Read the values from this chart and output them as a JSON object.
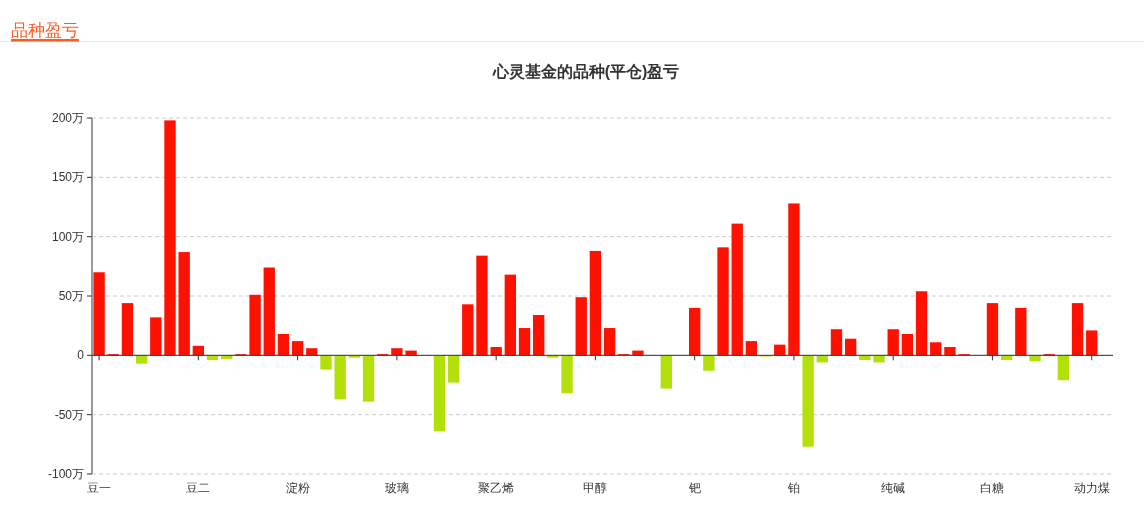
{
  "chart_data": {
    "type": "bar",
    "title": "心灵基金的品种(平仓)盈亏",
    "annotations": [
      "品种盈亏"
    ],
    "categories": [
      "豆一",
      null,
      null,
      null,
      null,
      null,
      null,
      "豆二",
      null,
      null,
      null,
      null,
      null,
      null,
      "淀粉",
      null,
      null,
      null,
      null,
      null,
      null,
      "玻璃",
      null,
      null,
      null,
      null,
      null,
      null,
      "聚乙烯",
      null,
      null,
      null,
      null,
      null,
      null,
      "甲醇",
      null,
      null,
      null,
      null,
      null,
      null,
      "钯",
      null,
      null,
      null,
      null,
      null,
      null,
      "铂",
      null,
      null,
      null,
      null,
      null,
      null,
      "纯碱",
      null,
      null,
      null,
      null,
      null,
      null,
      "白糖",
      null,
      null,
      null,
      null,
      null,
      null,
      "动力煤",
      null
    ],
    "values": [
      70,
      1,
      44,
      -7,
      32,
      198,
      87,
      8,
      -4,
      -3,
      1,
      51,
      74,
      18,
      12,
      6,
      -12,
      -37,
      -2,
      -39,
      1,
      6,
      4,
      null,
      -64,
      -23,
      43,
      84,
      7,
      68,
      23,
      34,
      -2,
      -32,
      49,
      88,
      23,
      1,
      4,
      null,
      -28,
      null,
      40,
      -13,
      91,
      111,
      12,
      -1,
      9,
      128,
      -77,
      -6,
      22,
      14,
      -4,
      -6,
      22,
      18,
      54,
      11,
      7,
      1,
      null,
      44,
      -4,
      40,
      -5,
      1,
      -21,
      44,
      21,
      null
    ],
    "colors": [
      "#ff1100",
      "#ff1100",
      "#ff1100",
      "#b3e00a",
      "#ff1100",
      "#ff1100",
      "#ff1100",
      "#ff1100",
      "#b3e00a",
      "#b3e00a",
      "#ff1100",
      "#ff1100",
      "#ff1100",
      "#ff1100",
      "#ff1100",
      "#ff1100",
      "#b3e00a",
      "#b3e00a",
      "#b3e00a",
      "#b3e00a",
      "#ff1100",
      "#ff1100",
      "#ff1100",
      null,
      "#b3e00a",
      "#b3e00a",
      "#ff1100",
      "#ff1100",
      "#ff1100",
      "#ff1100",
      "#ff1100",
      "#ff1100",
      "#b3e00a",
      "#b3e00a",
      "#ff1100",
      "#ff1100",
      "#ff1100",
      "#ff1100",
      "#ff1100",
      null,
      "#b3e00a",
      null,
      "#ff1100",
      "#b3e00a",
      "#ff1100",
      "#ff1100",
      "#ff1100",
      "#b3e00a",
      "#ff1100",
      "#ff1100",
      "#b3e00a",
      "#b3e00a",
      "#ff1100",
      "#ff1100",
      "#b3e00a",
      "#b3e00a",
      "#ff1100",
      "#ff1100",
      "#ff1100",
      "#ff1100",
      "#ff1100",
      "#ff1100",
      null,
      "#ff1100",
      "#b3e00a",
      "#ff1100",
      "#b3e00a",
      "#ff1100",
      "#b3e00a",
      "#ff1100",
      "#ff1100",
      null
    ],
    "ylim": [
      -100,
      200
    ],
    "yticks": [
      {
        "value": -100,
        "label": "-100万"
      },
      {
        "value": -50,
        "label": "-50万"
      },
      0,
      {
        "value": 50,
        "label": "50万"
      },
      {
        "value": 100,
        "label": "100万"
      },
      {
        "value": 150,
        "label": "150万"
      },
      {
        "value": 200,
        "label": "200万"
      }
    ],
    "grid": "y"
  }
}
